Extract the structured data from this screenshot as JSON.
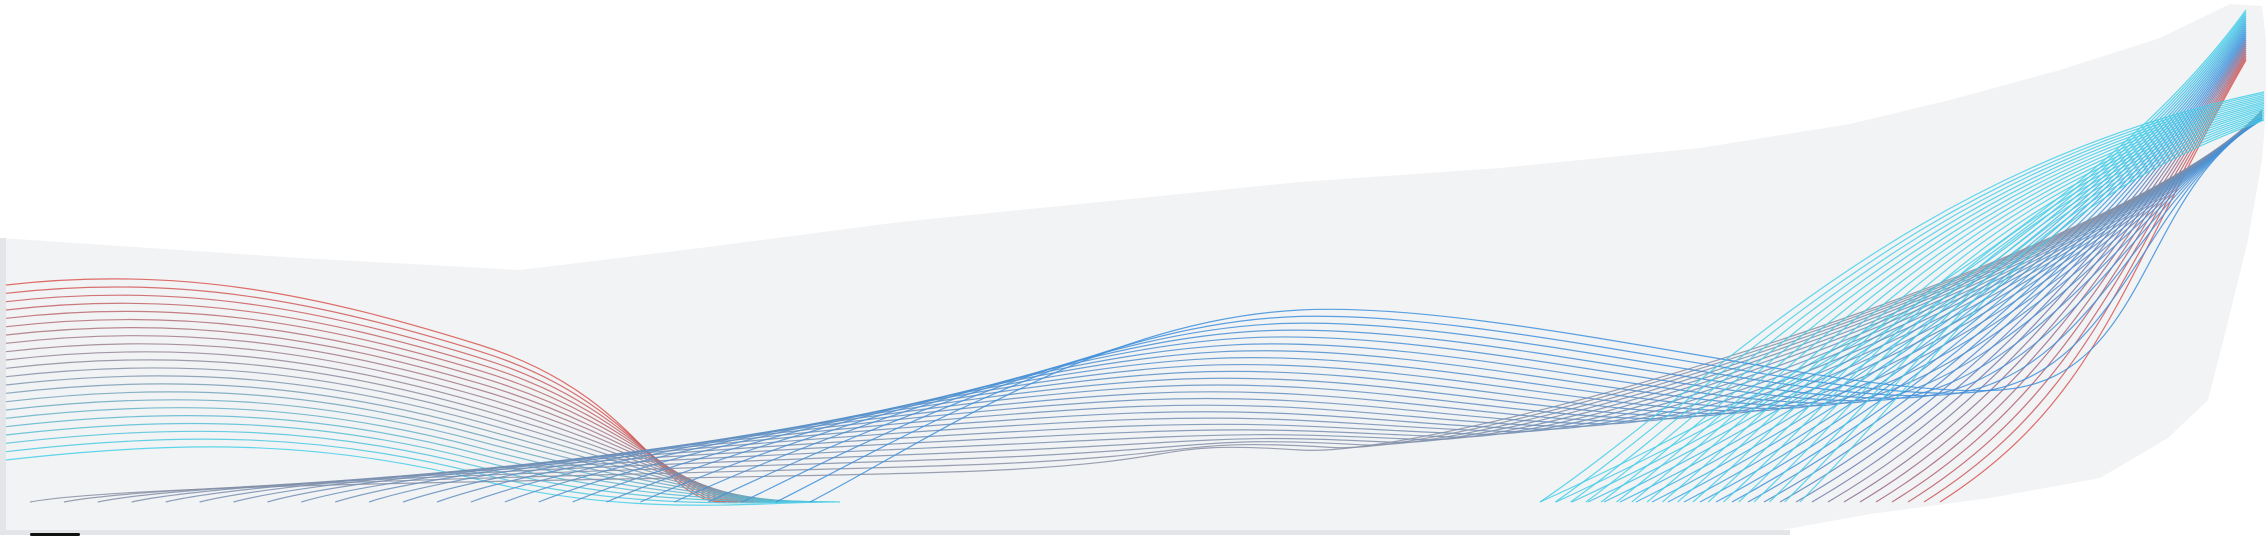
{
  "artwork": {
    "colors": {
      "background": "#ffffff",
      "panel": "#f2f3f5",
      "panel_edge": "#e3e5e8",
      "red": "#d9534f",
      "blue": "#3d8fdc",
      "cyan": "#44cfe8",
      "muted": "#8a8fa3",
      "shadow": "#111111"
    }
  }
}
